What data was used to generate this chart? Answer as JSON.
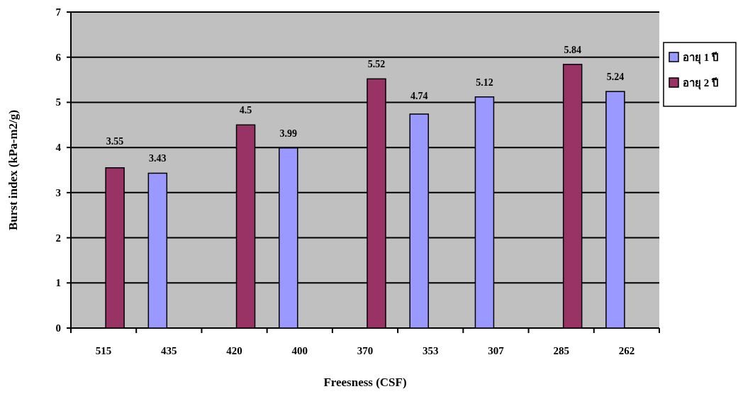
{
  "chart_data": {
    "type": "bar",
    "xlabel": "Freesness (CSF)",
    "ylabel": "Burst index (kPa-m2/g)",
    "categories": [
      "515",
      "435",
      "420",
      "400",
      "370",
      "353",
      "307",
      "285",
      "262"
    ],
    "series": [
      {
        "name": "อายุ 1 ปี",
        "color": "#9999ff",
        "values": [
          null,
          3.43,
          null,
          3.99,
          null,
          4.74,
          5.12,
          null,
          5.24
        ]
      },
      {
        "name": "อายุ 2 ปี",
        "color": "#993366",
        "values": [
          3.55,
          null,
          4.5,
          null,
          5.52,
          null,
          null,
          5.84,
          null
        ]
      }
    ],
    "ylim": [
      0,
      7
    ],
    "yticks": [
      0,
      1,
      2,
      3,
      4,
      5,
      6,
      7
    ],
    "grid": "y",
    "legend": "right",
    "data_labels": true
  }
}
